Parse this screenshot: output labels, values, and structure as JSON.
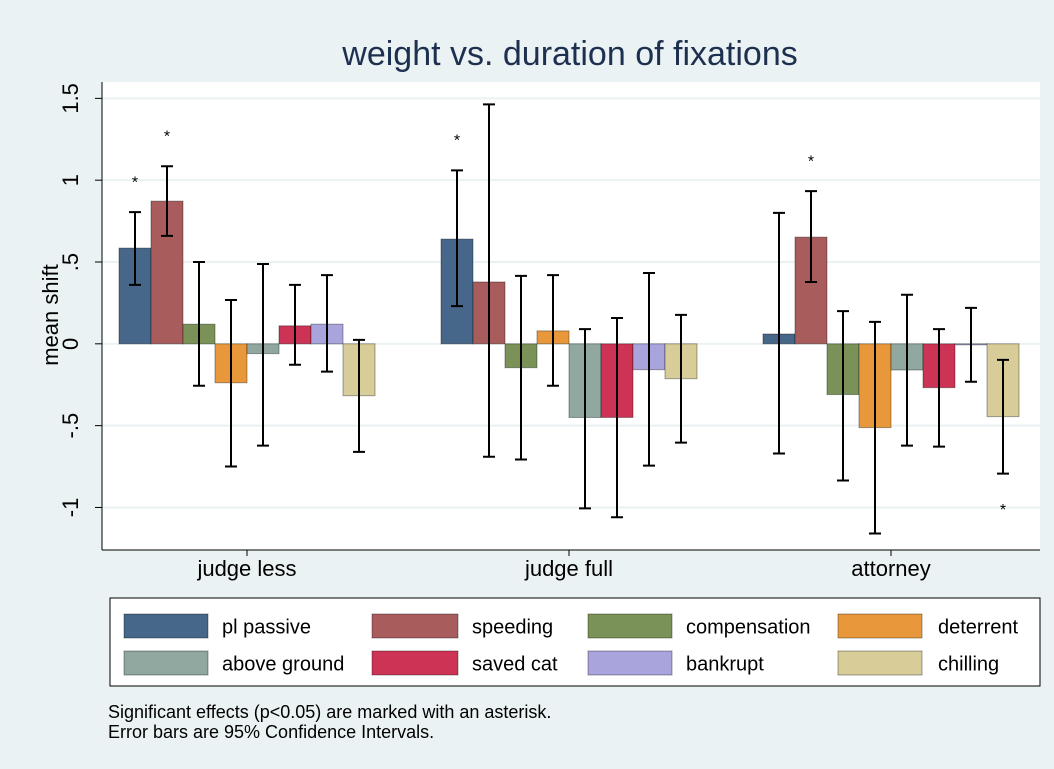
{
  "chart_data": {
    "type": "bar",
    "title": "weight vs. duration of fixations",
    "y_label": "mean shift",
    "categories": [
      "judge less",
      "judge full",
      "attorney"
    ],
    "ylim": [
      -1.26,
      1.6
    ],
    "yticks": [
      -1,
      {
        "value": -0.5,
        "label": "-.5"
      },
      0,
      {
        "value": 0.5,
        "label": ".5"
      },
      1,
      1.5
    ],
    "grid": true,
    "series": [
      {
        "name": "pl passive",
        "color": "#46678a",
        "values": [
          0.585,
          0.64,
          0.06
        ],
        "ci_low": [
          0.36,
          0.23,
          -0.67
        ],
        "ci_high": [
          0.805,
          1.06,
          0.8
        ],
        "significance": [
          "*",
          "*",
          null
        ]
      },
      {
        "name": "speeding",
        "color": "#a85c5c",
        "values": [
          0.872,
          0.378,
          0.652
        ],
        "ci_low": [
          0.66,
          -0.69,
          0.378
        ],
        "ci_high": [
          1.085,
          1.463,
          0.933
        ],
        "significance": [
          "*",
          null,
          "*"
        ]
      },
      {
        "name": "compensation",
        "color": "#7a9258",
        "values": [
          0.12,
          -0.146,
          -0.31
        ],
        "ci_low": [
          -0.256,
          -0.707,
          -0.835
        ],
        "ci_high": [
          0.5,
          0.415,
          0.2
        ],
        "significance": [
          null,
          null,
          null
        ]
      },
      {
        "name": "deterrent",
        "color": "#e8983a",
        "values": [
          -0.238,
          0.079,
          -0.512
        ],
        "ci_low": [
          -0.75,
          -0.256,
          -1.159
        ],
        "ci_high": [
          0.268,
          0.42,
          0.134
        ],
        "significance": [
          null,
          null,
          null
        ]
      },
      {
        "name": "above ground",
        "color": "#90a8a0",
        "values": [
          -0.06,
          -0.45,
          -0.16
        ],
        "ci_low": [
          -0.622,
          -1.006,
          -0.622
        ],
        "ci_high": [
          0.488,
          0.09,
          0.3
        ],
        "significance": [
          null,
          null,
          null
        ]
      },
      {
        "name": "saved cat",
        "color": "#cc3355",
        "values": [
          0.11,
          -0.45,
          -0.268
        ],
        "ci_low": [
          -0.128,
          -1.06,
          -0.628
        ],
        "ci_high": [
          0.36,
          0.158,
          0.09
        ],
        "significance": [
          null,
          null,
          null
        ]
      },
      {
        "name": "bankrupt",
        "color": "#a9a4dc",
        "values": [
          0.12,
          -0.158,
          -0.005
        ],
        "ci_low": [
          -0.17,
          -0.744,
          -0.232
        ],
        "ci_high": [
          0.42,
          0.433,
          0.22
        ],
        "significance": [
          null,
          null,
          null
        ]
      },
      {
        "name": "chilling",
        "color": "#d8cc98",
        "values": [
          -0.317,
          -0.213,
          -0.445
        ],
        "ci_low": [
          -0.66,
          -0.604,
          -0.793
        ],
        "ci_high": [
          0.024,
          0.177,
          -0.098
        ],
        "significance": [
          null,
          null,
          "*"
        ]
      }
    ],
    "notes": [
      "Significant effects (p<0.05) are marked with an asterisk.",
      "Error bars are 95% Confidence Intervals."
    ]
  }
}
